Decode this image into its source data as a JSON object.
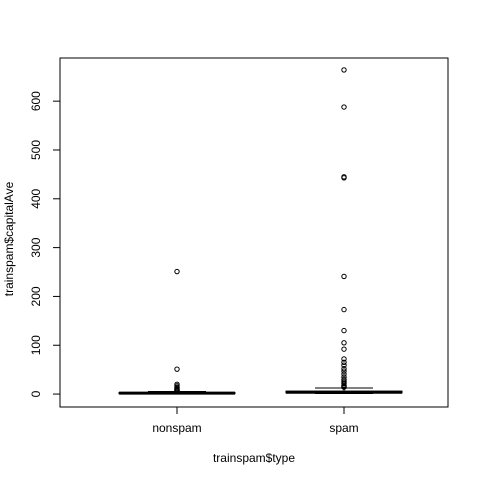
{
  "chart_data": {
    "type": "boxplot",
    "title": "",
    "xlabel": "trainspam$type",
    "ylabel": "trainspam$capitalAve",
    "categories": [
      "nonspam",
      "spam"
    ],
    "y_ticks": [
      0,
      100,
      200,
      300,
      400,
      500,
      600
    ],
    "ylim": [
      -26.5,
      688.4
    ],
    "grid": false,
    "series": [
      {
        "category": "nonspam",
        "min": 1.0,
        "q1": 1.5,
        "median": 2.0,
        "q3": 3.0,
        "max": 5.2,
        "outliers": [
          251,
          51,
          20,
          17,
          14,
          12,
          10,
          9,
          8,
          7,
          6.5,
          6
        ]
      },
      {
        "category": "spam",
        "min": 1.2,
        "q1": 2.5,
        "median": 3.8,
        "q3": 6.0,
        "max": 12.5,
        "outliers": [
          664,
          588,
          445,
          443,
          241,
          173,
          130,
          105,
          92,
          72,
          65,
          59,
          52,
          47,
          41,
          35,
          30,
          27,
          24,
          21,
          18,
          16,
          15,
          14
        ]
      }
    ]
  }
}
